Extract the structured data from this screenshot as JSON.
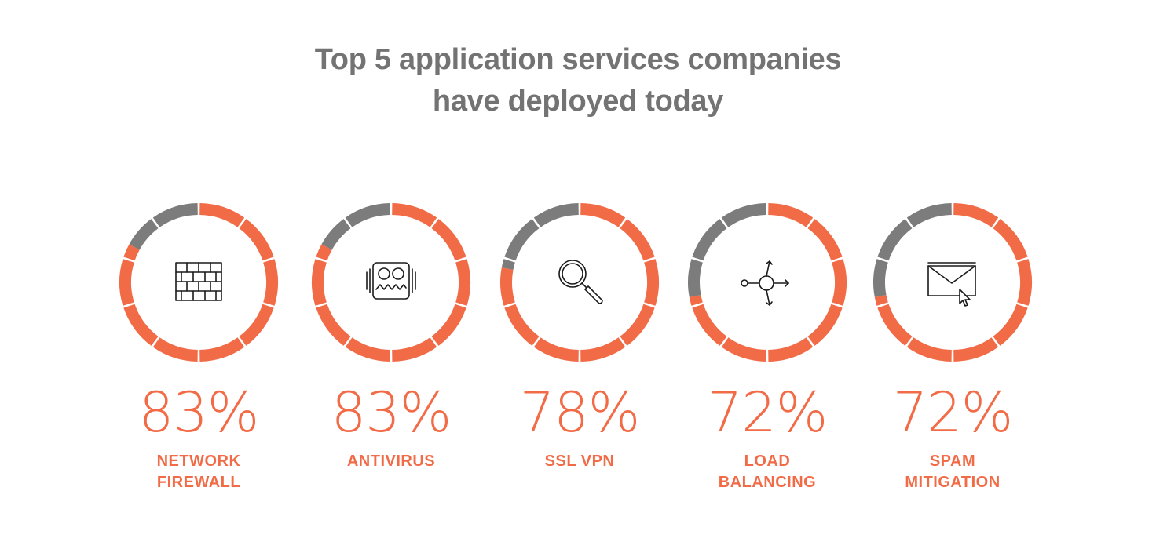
{
  "title_lines": [
    "Top 5 application services companies",
    "have deployed today"
  ],
  "colors": {
    "accent": "#f26b47",
    "remainder": "#7c7c7c",
    "title": "#737373"
  },
  "chart_data": {
    "type": "donut",
    "title": "Top 5 application services companies have deployed today",
    "segments_per_ring": 10,
    "items": [
      {
        "value_label": "83%",
        "value": 83,
        "label_lines": [
          "NETWORK",
          "FIREWALL"
        ],
        "icon": "firewall-icon"
      },
      {
        "value_label": "83%",
        "value": 83,
        "label_lines": [
          "ANTIVIRUS"
        ],
        "icon": "antivirus-icon"
      },
      {
        "value_label": "78%",
        "value": 78,
        "label_lines": [
          "SSL VPN"
        ],
        "icon": "magnifier-icon"
      },
      {
        "value_label": "72%",
        "value": 72,
        "label_lines": [
          "LOAD",
          "BALANCING"
        ],
        "icon": "load-balancer-icon"
      },
      {
        "value_label": "72%",
        "value": 72,
        "label_lines": [
          "SPAM",
          "MITIGATION"
        ],
        "icon": "envelope-icon"
      }
    ]
  }
}
